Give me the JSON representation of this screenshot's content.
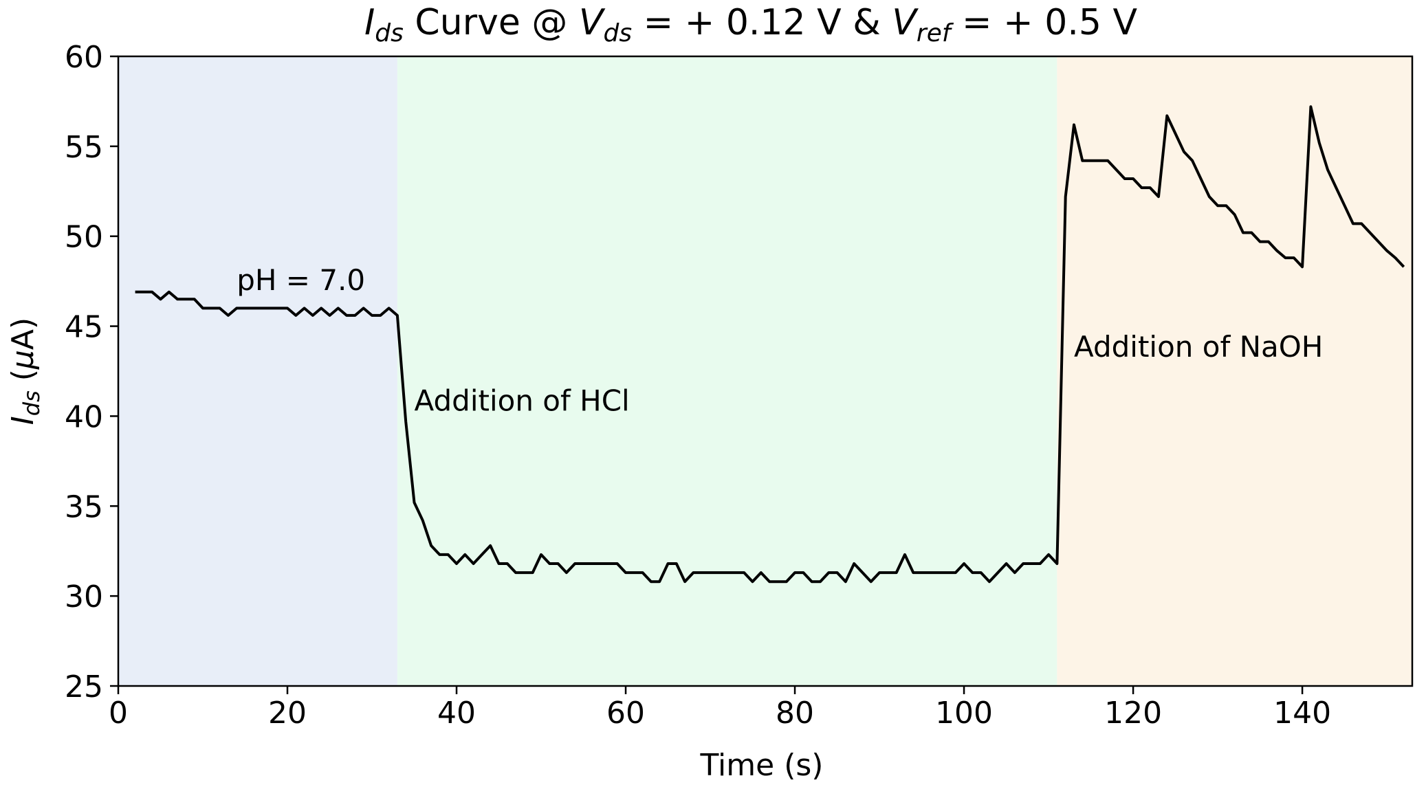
{
  "chart_data": {
    "type": "line",
    "title": {
      "prefix": "I",
      "prefix_sub": "ds",
      "middle1": " Curve @ ",
      "v1": "V",
      "v1_sub": "ds",
      "middle2": " = + 0.12 V & ",
      "v2": "V",
      "v2_sub": "ref",
      "suffix": " = + 0.5 V"
    },
    "xlabel": "Time (s)",
    "ylabel": {
      "main": "I",
      "sub": "ds",
      "unit_prefix": " (",
      "mu": "μ",
      "unit_suffix": "A)"
    },
    "xlim": [
      0,
      153
    ],
    "ylim": [
      25,
      60
    ],
    "xticks": [
      0,
      20,
      40,
      60,
      80,
      100,
      120,
      140
    ],
    "yticks": [
      25,
      30,
      35,
      40,
      45,
      50,
      55,
      60
    ],
    "regions": [
      {
        "name": "pH 7.0",
        "from": 0,
        "to": 33,
        "color": "#e8eef8"
      },
      {
        "name": "HCl",
        "from": 33,
        "to": 111,
        "color": "#e8fbee"
      },
      {
        "name": "NaOH",
        "from": 111,
        "to": 153,
        "color": "#fdf4e7"
      }
    ],
    "annotations": [
      {
        "text": "pH = 7.0",
        "x": 14,
        "y": 47.0
      },
      {
        "text": "Addition of HCl",
        "x": 35,
        "y": 40.3
      },
      {
        "text": "Addition of NaOH",
        "x": 113,
        "y": 43.3
      }
    ],
    "series": [
      {
        "name": "Ids",
        "color": "#000000",
        "points": [
          [
            2,
            46.9
          ],
          [
            3,
            46.9
          ],
          [
            4,
            46.9
          ],
          [
            5,
            46.5
          ],
          [
            6,
            46.9
          ],
          [
            7,
            46.5
          ],
          [
            8,
            46.5
          ],
          [
            9,
            46.5
          ],
          [
            10,
            46.0
          ],
          [
            11,
            46.0
          ],
          [
            12,
            46.0
          ],
          [
            13,
            45.6
          ],
          [
            14,
            46.0
          ],
          [
            15,
            46.0
          ],
          [
            16,
            46.0
          ],
          [
            17,
            46.0
          ],
          [
            18,
            46.0
          ],
          [
            19,
            46.0
          ],
          [
            20,
            46.0
          ],
          [
            21,
            45.6
          ],
          [
            22,
            46.0
          ],
          [
            23,
            45.6
          ],
          [
            24,
            46.0
          ],
          [
            25,
            45.6
          ],
          [
            26,
            46.0
          ],
          [
            27,
            45.6
          ],
          [
            28,
            45.6
          ],
          [
            29,
            46.0
          ],
          [
            30,
            45.6
          ],
          [
            31,
            45.6
          ],
          [
            32,
            46.0
          ],
          [
            33,
            45.6
          ],
          [
            34,
            39.7
          ],
          [
            35,
            35.2
          ],
          [
            36,
            34.2
          ],
          [
            37,
            32.8
          ],
          [
            38,
            32.3
          ],
          [
            39,
            32.3
          ],
          [
            40,
            31.8
          ],
          [
            41,
            32.3
          ],
          [
            42,
            31.8
          ],
          [
            43,
            32.3
          ],
          [
            44,
            32.8
          ],
          [
            45,
            31.8
          ],
          [
            46,
            31.8
          ],
          [
            47,
            31.3
          ],
          [
            48,
            31.3
          ],
          [
            49,
            31.3
          ],
          [
            50,
            32.3
          ],
          [
            51,
            31.8
          ],
          [
            52,
            31.8
          ],
          [
            53,
            31.3
          ],
          [
            54,
            31.8
          ],
          [
            55,
            31.8
          ],
          [
            56,
            31.8
          ],
          [
            57,
            31.8
          ],
          [
            58,
            31.8
          ],
          [
            59,
            31.8
          ],
          [
            60,
            31.3
          ],
          [
            61,
            31.3
          ],
          [
            62,
            31.3
          ],
          [
            63,
            30.8
          ],
          [
            64,
            30.8
          ],
          [
            65,
            31.8
          ],
          [
            66,
            31.8
          ],
          [
            67,
            30.8
          ],
          [
            68,
            31.3
          ],
          [
            69,
            31.3
          ],
          [
            70,
            31.3
          ],
          [
            71,
            31.3
          ],
          [
            72,
            31.3
          ],
          [
            73,
            31.3
          ],
          [
            74,
            31.3
          ],
          [
            75,
            30.8
          ],
          [
            76,
            31.3
          ],
          [
            77,
            30.8
          ],
          [
            78,
            30.8
          ],
          [
            79,
            30.8
          ],
          [
            80,
            31.3
          ],
          [
            81,
            31.3
          ],
          [
            82,
            30.8
          ],
          [
            83,
            30.8
          ],
          [
            84,
            31.3
          ],
          [
            85,
            31.3
          ],
          [
            86,
            30.8
          ],
          [
            87,
            31.8
          ],
          [
            88,
            31.3
          ],
          [
            89,
            30.8
          ],
          [
            90,
            31.3
          ],
          [
            91,
            31.3
          ],
          [
            92,
            31.3
          ],
          [
            93,
            32.3
          ],
          [
            94,
            31.3
          ],
          [
            95,
            31.3
          ],
          [
            96,
            31.3
          ],
          [
            97,
            31.3
          ],
          [
            98,
            31.3
          ],
          [
            99,
            31.3
          ],
          [
            100,
            31.8
          ],
          [
            101,
            31.3
          ],
          [
            102,
            31.3
          ],
          [
            103,
            30.8
          ],
          [
            104,
            31.3
          ],
          [
            105,
            31.8
          ],
          [
            106,
            31.3
          ],
          [
            107,
            31.8
          ],
          [
            108,
            31.8
          ],
          [
            109,
            31.8
          ],
          [
            110,
            32.3
          ],
          [
            111,
            31.8
          ],
          [
            112,
            52.2
          ],
          [
            113,
            56.2
          ],
          [
            114,
            54.2
          ],
          [
            115,
            54.2
          ],
          [
            116,
            54.2
          ],
          [
            117,
            54.2
          ],
          [
            118,
            53.7
          ],
          [
            119,
            53.2
          ],
          [
            120,
            53.2
          ],
          [
            121,
            52.7
          ],
          [
            122,
            52.7
          ],
          [
            123,
            52.2
          ],
          [
            124,
            56.7
          ],
          [
            125,
            55.7
          ],
          [
            126,
            54.7
          ],
          [
            127,
            54.2
          ],
          [
            128,
            53.2
          ],
          [
            129,
            52.2
          ],
          [
            130,
            51.7
          ],
          [
            131,
            51.7
          ],
          [
            132,
            51.2
          ],
          [
            133,
            50.2
          ],
          [
            134,
            50.2
          ],
          [
            135,
            49.7
          ],
          [
            136,
            49.7
          ],
          [
            137,
            49.2
          ],
          [
            138,
            48.8
          ],
          [
            139,
            48.8
          ],
          [
            140,
            48.3
          ],
          [
            141,
            57.2
          ],
          [
            142,
            55.2
          ],
          [
            143,
            53.7
          ],
          [
            144,
            52.7
          ],
          [
            145,
            51.7
          ],
          [
            146,
            50.7
          ],
          [
            147,
            50.7
          ],
          [
            148,
            50.2
          ],
          [
            149,
            49.7
          ],
          [
            150,
            49.2
          ],
          [
            151,
            48.8
          ],
          [
            152,
            48.3
          ]
        ]
      }
    ]
  }
}
